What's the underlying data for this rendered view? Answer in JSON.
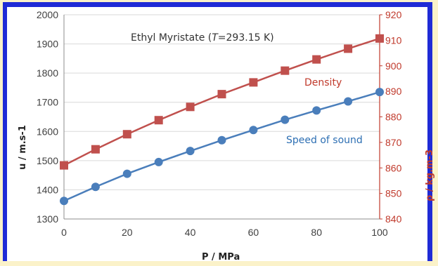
{
  "chart_data": {
    "type": "line",
    "title_prefix": "Ethyl Myristate (",
    "title_var": "T",
    "title_suffix": "=293.15 K)",
    "xlabel": "P / MPa",
    "ylabel_left": "u / m.s-1",
    "ylabel_right": "ρ / kg.m-3",
    "x": [
      0,
      10,
      20,
      30,
      40,
      50,
      60,
      70,
      80,
      90,
      100
    ],
    "xlim": [
      0,
      100
    ],
    "xticks": [
      0,
      20,
      40,
      60,
      80,
      100
    ],
    "ylim_left": [
      1300,
      2000
    ],
    "yticks_left": [
      1300,
      1400,
      1500,
      1600,
      1700,
      1800,
      1900,
      2000
    ],
    "ylim_right": [
      840,
      920
    ],
    "yticks_right": [
      840,
      850,
      860,
      870,
      880,
      890,
      900,
      910,
      920
    ],
    "grid": "horizontal",
    "series": [
      {
        "name": "Speed of sound",
        "axis": "left",
        "marker": "circle",
        "color": "#4a7ebb",
        "values": [
          1362,
          1410,
          1455,
          1495,
          1533,
          1570,
          1605,
          1640,
          1672,
          1703,
          1735
        ]
      },
      {
        "name": "Density",
        "axis": "right",
        "marker": "square",
        "color": "#c0504d",
        "values": [
          861.0,
          867.3,
          873.2,
          878.7,
          883.9,
          888.9,
          893.5,
          898.1,
          902.5,
          906.7,
          910.7
        ]
      }
    ],
    "annotations": [
      {
        "text": "Density",
        "series": "Density"
      },
      {
        "text": "Speed of sound",
        "series": "Speed of sound"
      }
    ]
  },
  "colors": {
    "frame": "#1f2bd6",
    "background": "#fbf2c9",
    "right_axis": "#c0392b"
  }
}
